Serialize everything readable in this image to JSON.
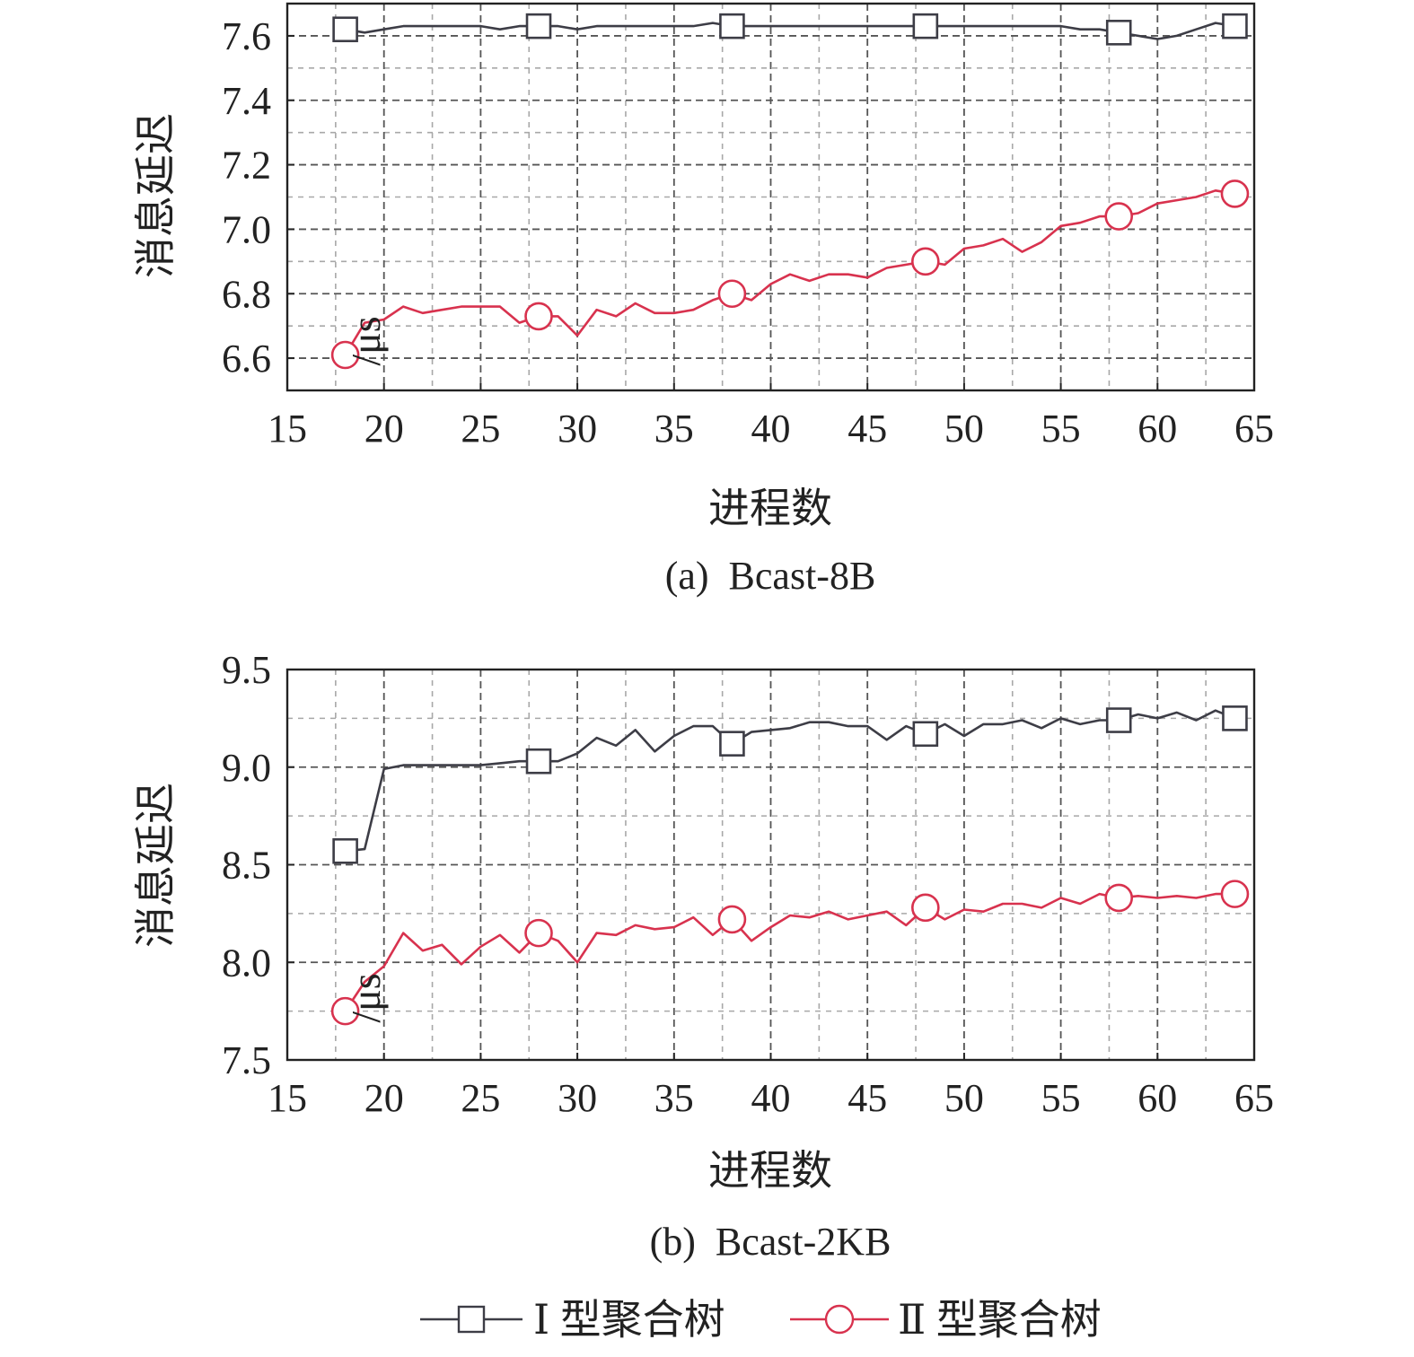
{
  "colors": {
    "series1": "#3d3d46",
    "series2": "#d8324e",
    "grid": "#a8a8a8",
    "axis": "#222222"
  },
  "legend": {
    "items": [
      {
        "label": "Ⅰ 型聚合树",
        "marker": "square",
        "color": "#3d3d46"
      },
      {
        "label": "Ⅱ 型聚合树",
        "marker": "circle",
        "color": "#d8324e"
      }
    ],
    "placement": "bottom-center"
  },
  "chart_data": [
    {
      "type": "line",
      "caption": "(a)  Bcast-8B",
      "xlabel": "进程数",
      "ylabel_main": "消息延迟",
      "ylabel_unit": "/μs",
      "xlim": [
        15,
        65
      ],
      "ylim": [
        6.5,
        7.7
      ],
      "xticks": [
        15,
        20,
        25,
        30,
        35,
        40,
        45,
        50,
        55,
        60,
        65
      ],
      "xtick_labels": [
        "15",
        "20",
        "25",
        "30",
        "35",
        "40",
        "45",
        "50",
        "55",
        "60",
        "65"
      ],
      "yticks": [
        6.6,
        6.8,
        7.0,
        7.2,
        7.4,
        7.6
      ],
      "ytick_labels": [
        "6.6",
        "6.8",
        "7.0",
        "7.2",
        "7.4",
        "7.6"
      ],
      "grid": true,
      "x": [
        18,
        19,
        20,
        21,
        22,
        23,
        24,
        25,
        26,
        27,
        28,
        29,
        30,
        31,
        32,
        33,
        34,
        35,
        36,
        37,
        38,
        39,
        40,
        41,
        42,
        43,
        44,
        45,
        46,
        47,
        48,
        49,
        50,
        51,
        52,
        53,
        54,
        55,
        56,
        57,
        58,
        59,
        60,
        61,
        62,
        63,
        64
      ],
      "series": [
        {
          "name": "Ⅰ 型聚合树",
          "marker": "square",
          "marker_x": [
            18,
            28,
            38,
            48,
            58,
            64
          ],
          "values": [
            7.62,
            7.61,
            7.62,
            7.63,
            7.63,
            7.63,
            7.63,
            7.63,
            7.62,
            7.63,
            7.63,
            7.63,
            7.62,
            7.63,
            7.63,
            7.63,
            7.63,
            7.63,
            7.63,
            7.64,
            7.63,
            7.63,
            7.63,
            7.63,
            7.63,
            7.63,
            7.63,
            7.63,
            7.63,
            7.63,
            7.63,
            7.63,
            7.63,
            7.63,
            7.63,
            7.63,
            7.63,
            7.63,
            7.62,
            7.62,
            7.61,
            7.6,
            7.59,
            7.6,
            7.62,
            7.64,
            7.63
          ]
        },
        {
          "name": "Ⅱ 型聚合树",
          "marker": "circle",
          "marker_x": [
            18,
            28,
            38,
            48,
            58,
            64
          ],
          "values": [
            6.61,
            6.71,
            6.72,
            6.76,
            6.74,
            6.75,
            6.76,
            6.76,
            6.76,
            6.71,
            6.73,
            6.73,
            6.67,
            6.75,
            6.73,
            6.77,
            6.74,
            6.74,
            6.75,
            6.78,
            6.8,
            6.78,
            6.83,
            6.86,
            6.84,
            6.86,
            6.86,
            6.85,
            6.88,
            6.89,
            6.9,
            6.89,
            6.94,
            6.95,
            6.97,
            6.93,
            6.96,
            7.01,
            7.02,
            7.04,
            7.04,
            7.05,
            7.08,
            7.09,
            7.1,
            7.12,
            7.11
          ]
        }
      ]
    },
    {
      "type": "line",
      "caption": "(b)  Bcast-2KB",
      "xlabel": "进程数",
      "ylabel_main": "消息延迟",
      "ylabel_unit": "/μs",
      "xlim": [
        15,
        65
      ],
      "ylim": [
        7.5,
        9.5
      ],
      "xticks": [
        15,
        20,
        25,
        30,
        35,
        40,
        45,
        50,
        55,
        60,
        65
      ],
      "xtick_labels": [
        "15",
        "20",
        "25",
        "30",
        "35",
        "40",
        "45",
        "50",
        "55",
        "60",
        "65"
      ],
      "yticks": [
        7.5,
        8.0,
        8.5,
        9.0,
        9.5
      ],
      "ytick_labels": [
        "7.5",
        "8.0",
        "8.5",
        "9.0",
        "9.5"
      ],
      "grid": true,
      "x": [
        18,
        19,
        20,
        21,
        22,
        23,
        24,
        25,
        26,
        27,
        28,
        29,
        30,
        31,
        32,
        33,
        34,
        35,
        36,
        37,
        38,
        39,
        40,
        41,
        42,
        43,
        44,
        45,
        46,
        47,
        48,
        49,
        50,
        51,
        52,
        53,
        54,
        55,
        56,
        57,
        58,
        59,
        60,
        61,
        62,
        63,
        64
      ],
      "series": [
        {
          "name": "Ⅰ 型聚合树",
          "marker": "square",
          "marker_x": [
            18,
            28,
            38,
            48,
            58,
            64
          ],
          "values": [
            8.57,
            8.58,
            8.99,
            9.01,
            9.01,
            9.01,
            9.01,
            9.01,
            9.02,
            9.03,
            9.03,
            9.03,
            9.07,
            9.15,
            9.11,
            9.19,
            9.08,
            9.16,
            9.21,
            9.21,
            9.12,
            9.18,
            9.19,
            9.2,
            9.23,
            9.23,
            9.21,
            9.21,
            9.14,
            9.21,
            9.17,
            9.22,
            9.16,
            9.22,
            9.22,
            9.24,
            9.2,
            9.25,
            9.22,
            9.24,
            9.24,
            9.27,
            9.25,
            9.28,
            9.24,
            9.29,
            9.25
          ]
        },
        {
          "name": "Ⅱ 型聚合树",
          "marker": "circle",
          "marker_x": [
            18,
            28,
            38,
            48,
            58,
            64
          ],
          "values": [
            7.75,
            7.9,
            7.98,
            8.15,
            8.06,
            8.09,
            7.99,
            8.08,
            8.14,
            8.05,
            8.15,
            8.11,
            8.0,
            8.15,
            8.14,
            8.19,
            8.17,
            8.18,
            8.23,
            8.14,
            8.22,
            8.11,
            8.18,
            8.24,
            8.23,
            8.26,
            8.22,
            8.24,
            8.26,
            8.19,
            8.28,
            8.22,
            8.27,
            8.26,
            8.3,
            8.3,
            8.28,
            8.33,
            8.3,
            8.35,
            8.33,
            8.34,
            8.33,
            8.34,
            8.33,
            8.35,
            8.35
          ]
        }
      ]
    }
  ]
}
